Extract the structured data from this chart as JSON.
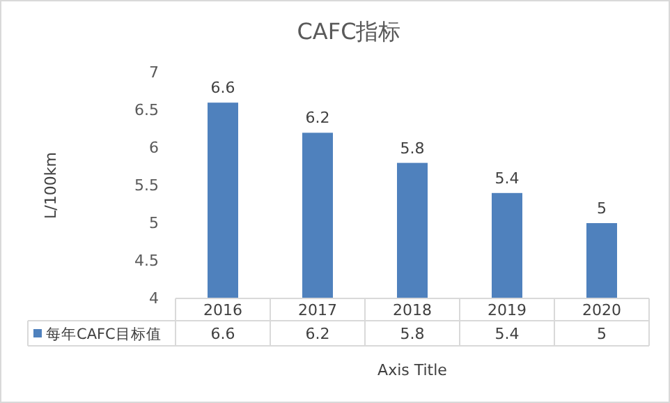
{
  "chart_data": {
    "type": "bar",
    "title": "CAFC指标",
    "xlabel": "Axis Title",
    "ylabel": "L/100km",
    "categories": [
      "2016",
      "2017",
      "2018",
      "2019",
      "2020"
    ],
    "series": [
      {
        "name": "每年CAFC目标值",
        "color": "#4f81bd",
        "values": [
          6.6,
          6.2,
          5.8,
          5.4,
          5
        ],
        "value_labels": [
          "6.6",
          "6.2",
          "5.8",
          "5.4",
          "5"
        ]
      }
    ],
    "annotations": [
      "6.6",
      "6.2",
      "5.8",
      "5.4",
      "5"
    ],
    "ylim": [
      4,
      7
    ],
    "yticks": [
      4,
      4.5,
      5,
      5.5,
      6,
      6.5,
      7
    ],
    "grid": false,
    "data_labels": true,
    "legend": "bottom"
  }
}
